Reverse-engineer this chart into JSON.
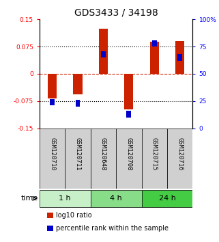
{
  "title": "GDS3433 / 34198",
  "samples": [
    "GSM120710",
    "GSM120711",
    "GSM120648",
    "GSM120708",
    "GSM120715",
    "GSM120716"
  ],
  "log10_ratio": [
    -0.068,
    -0.057,
    0.125,
    -0.098,
    0.088,
    0.09
  ],
  "percentile_rank": [
    24,
    23,
    68,
    13,
    78,
    65
  ],
  "ylim_left": [
    -0.15,
    0.15
  ],
  "ylim_right": [
    0,
    100
  ],
  "yticks_left": [
    -0.15,
    -0.075,
    0,
    0.075,
    0.15
  ],
  "yticks_right": [
    0,
    25,
    50,
    75,
    100
  ],
  "ytick_labels_left": [
    "-0.15",
    "-0.075",
    "0",
    "0.075",
    "0.15"
  ],
  "ytick_labels_right": [
    "0",
    "25",
    "50",
    "75",
    "100%"
  ],
  "hlines_dotted": [
    0.075,
    0,
    -0.075
  ],
  "time_groups": [
    {
      "label": "1 h",
      "cols": [
        0,
        1
      ],
      "color": "#c8f0c8"
    },
    {
      "label": "4 h",
      "cols": [
        2,
        3
      ],
      "color": "#88dd88"
    },
    {
      "label": "24 h",
      "cols": [
        4,
        5
      ],
      "color": "#44cc44"
    }
  ],
  "bar_color_red": "#cc2200",
  "dot_color_blue": "#0000cc",
  "zero_line_color": "#cc2200",
  "zero_line_style": "dashed",
  "bg_plot": "#ffffff",
  "bg_label": "#d0d0d0",
  "legend_red_label": "log10 ratio",
  "legend_blue_label": "percentile rank within the sample",
  "time_label": "time"
}
